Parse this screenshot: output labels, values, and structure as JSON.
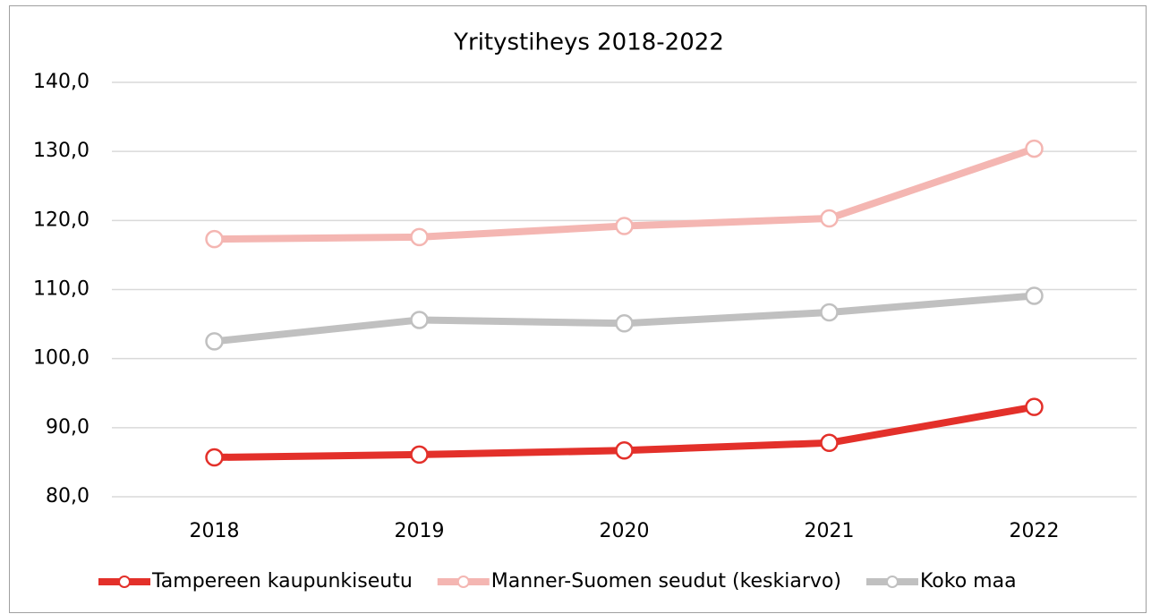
{
  "chart_data": {
    "type": "line",
    "title": "Yritystiheys 2018-2022",
    "categories": [
      "2018",
      "2019",
      "2020",
      "2021",
      "2022"
    ],
    "series": [
      {
        "name": "Tampereen kaupunkiseutu",
        "color": "#e3302a",
        "values": [
          85.7,
          86.1,
          86.7,
          87.8,
          93.0
        ]
      },
      {
        "name": "Manner-Suomen seudut (keskiarvo)",
        "color": "#f4b6b2",
        "values": [
          117.3,
          117.6,
          119.2,
          120.3,
          130.4
        ]
      },
      {
        "name": "Koko maa",
        "color": "#c0c0c0",
        "values": [
          102.5,
          105.6,
          105.1,
          106.7,
          109.1
        ]
      }
    ],
    "ylim": [
      80,
      140
    ],
    "yticks": [
      {
        "value": 80,
        "label": "80,0"
      },
      {
        "value": 90,
        "label": "90,0"
      },
      {
        "value": 100,
        "label": "100,0"
      },
      {
        "value": 110,
        "label": "110,0"
      },
      {
        "value": 120,
        "label": "120,0"
      },
      {
        "value": 130,
        "label": "130,0"
      },
      {
        "value": 140,
        "label": "140,0"
      }
    ],
    "grid": true,
    "legend": "bottom"
  }
}
